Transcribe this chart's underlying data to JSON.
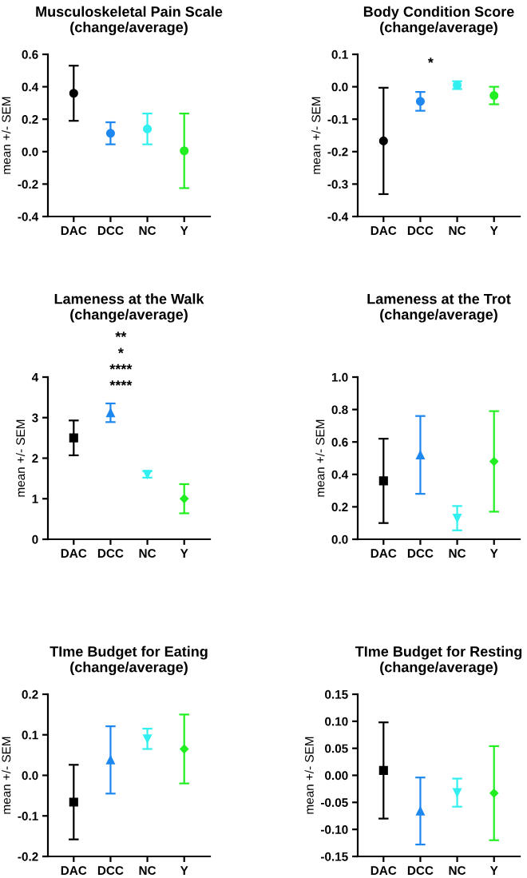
{
  "chart_data": [
    {
      "type": "scatter",
      "title": "Musculoskeletal Pain Scale\n(change/average)",
      "ylabel": "mean +/- SEM",
      "categories": [
        "DAC",
        "DCC",
        "NC",
        "Y"
      ],
      "ylim": [
        -0.4,
        0.6
      ],
      "yticks": [
        -0.4,
        -0.2,
        {
          "value": 0,
          "label": "0.0"
        },
        0.2,
        0.4,
        0.6
      ],
      "series": [
        {
          "color": "#000000",
          "marker": "circle",
          "values": [
            0.36,
            null,
            null,
            null
          ],
          "errors": [
            0.17,
            null,
            null,
            null
          ]
        },
        {
          "color": "#1e88f0",
          "marker": "circle",
          "values": [
            null,
            0.113,
            null,
            null
          ],
          "errors": [
            null,
            0.068,
            null,
            null
          ]
        },
        {
          "color": "#33f0f0",
          "marker": "circle",
          "values": [
            null,
            null,
            0.14,
            null
          ],
          "errors": [
            null,
            null,
            0.095,
            null
          ]
        },
        {
          "color": "#22ee22",
          "marker": "circle",
          "values": [
            null,
            null,
            null,
            0.005
          ],
          "errors": [
            null,
            null,
            null,
            0.23
          ]
        }
      ]
    },
    {
      "type": "scatter",
      "title": "Body Condition Score\n(change/average)",
      "ylabel": "mean +/- SEM",
      "categories": [
        "DAC",
        "DCC",
        "NC",
        "Y"
      ],
      "ylim": [
        -0.4,
        0.1
      ],
      "yticks": [
        -0.4,
        -0.3,
        -0.2,
        -0.1,
        {
          "value": 0,
          "label": "0.0"
        },
        0.1
      ],
      "annotations": [
        "*"
      ],
      "series": [
        {
          "color": "#000000",
          "marker": "circle",
          "values": [
            -0.167,
            null,
            null,
            null
          ],
          "errors": [
            0.164,
            null,
            null,
            null
          ]
        },
        {
          "color": "#1e88f0",
          "marker": "circle",
          "values": [
            null,
            -0.045,
            null,
            null
          ],
          "errors": [
            null,
            0.029,
            null,
            null
          ]
        },
        {
          "color": "#33f0f0",
          "marker": "circle",
          "values": [
            null,
            null,
            0.005,
            null
          ],
          "errors": [
            null,
            null,
            0.012,
            null
          ]
        },
        {
          "color": "#22ee22",
          "marker": "circle",
          "values": [
            null,
            null,
            null,
            -0.027
          ],
          "errors": [
            null,
            null,
            null,
            0.027
          ]
        }
      ]
    },
    {
      "type": "scatter",
      "title": "Lameness at the Walk\n(change/average)",
      "ylabel": "mean +/- SEM",
      "categories": [
        "DAC",
        "DCC",
        "NC",
        "Y"
      ],
      "ylim": [
        0,
        4
      ],
      "yticks": [
        0,
        1,
        2,
        3,
        4
      ],
      "annotations": [
        "**",
        "*",
        "****",
        "****"
      ],
      "series": [
        {
          "color": "#000000",
          "marker": "square",
          "values": [
            2.5,
            null,
            null,
            null
          ],
          "errors": [
            0.43,
            null,
            null,
            null
          ]
        },
        {
          "color": "#1e88f0",
          "marker": "triangle",
          "values": [
            null,
            3.12,
            null,
            null
          ],
          "errors": [
            null,
            0.23,
            null,
            null
          ]
        },
        {
          "color": "#33f0f0",
          "marker": "triangle_down",
          "values": [
            null,
            null,
            1.6,
            null
          ],
          "errors": [
            null,
            null,
            0.08,
            null
          ]
        },
        {
          "color": "#22ee22",
          "marker": "diamond",
          "values": [
            null,
            null,
            null,
            1.0
          ],
          "errors": [
            null,
            null,
            null,
            0.36
          ]
        }
      ]
    },
    {
      "type": "scatter",
      "title": "Lameness at the Trot\n(change/average)",
      "ylabel": "mean +/- SEM",
      "categories": [
        "DAC",
        "DCC",
        "NC",
        "Y"
      ],
      "ylim": [
        0,
        1
      ],
      "yticks": [
        {
          "value": 0,
          "label": "0.0"
        },
        0.2,
        0.4,
        0.6,
        0.8,
        {
          "value": 1,
          "label": "1.0"
        }
      ],
      "series": [
        {
          "color": "#000000",
          "marker": "square",
          "values": [
            0.36,
            null,
            null,
            null
          ],
          "errors": [
            0.26,
            null,
            null,
            null
          ]
        },
        {
          "color": "#1e88f0",
          "marker": "triangle",
          "values": [
            null,
            0.52,
            null,
            null
          ],
          "errors": [
            null,
            0.24,
            null,
            null
          ]
        },
        {
          "color": "#33f0f0",
          "marker": "triangle_down",
          "values": [
            null,
            null,
            0.13,
            null
          ],
          "errors": [
            null,
            null,
            0.075,
            null
          ]
        },
        {
          "color": "#22ee22",
          "marker": "diamond",
          "values": [
            null,
            null,
            null,
            0.48
          ],
          "errors": [
            null,
            null,
            null,
            0.31
          ]
        }
      ]
    },
    {
      "type": "scatter",
      "title": "TIme Budget for Eating\n(change/average)",
      "ylabel": "mean +/- SEM",
      "categories": [
        "DAC",
        "DCC",
        "NC",
        "Y"
      ],
      "ylim": [
        -0.2,
        0.2
      ],
      "yticks": [
        -0.2,
        -0.1,
        {
          "value": 0,
          "label": "0.0"
        },
        0.1,
        0.2
      ],
      "series": [
        {
          "color": "#000000",
          "marker": "square",
          "values": [
            -0.066,
            null,
            null,
            null
          ],
          "errors": [
            0.092,
            null,
            null,
            null
          ]
        },
        {
          "color": "#1e88f0",
          "marker": "triangle",
          "values": [
            null,
            0.038,
            null,
            null
          ],
          "errors": [
            null,
            0.083,
            null,
            null
          ]
        },
        {
          "color": "#33f0f0",
          "marker": "triangle_down",
          "values": [
            null,
            null,
            0.09,
            null
          ],
          "errors": [
            null,
            null,
            0.025,
            null
          ]
        },
        {
          "color": "#22ee22",
          "marker": "diamond",
          "values": [
            null,
            null,
            null,
            0.065
          ],
          "errors": [
            null,
            null,
            null,
            0.085
          ]
        }
      ]
    },
    {
      "type": "scatter",
      "title": "TIme Budget for Resting\n(change/average)",
      "ylabel": "mean +/- SEM",
      "categories": [
        "DAC",
        "DCC",
        "NC",
        "Y"
      ],
      "ylim": [
        -0.15,
        0.15
      ],
      "yticks": [
        {
          "value": -0.15,
          "label": "-0.15"
        },
        {
          "value": -0.1,
          "label": "-0.10"
        },
        {
          "value": -0.05,
          "label": "-0.05"
        },
        {
          "value": 0,
          "label": "0.00"
        },
        {
          "value": 0.05,
          "label": "0.05"
        },
        {
          "value": 0.1,
          "label": "0.10"
        },
        {
          "value": 0.15,
          "label": "0.15"
        }
      ],
      "series": [
        {
          "color": "#000000",
          "marker": "square",
          "values": [
            0.009,
            null,
            null,
            null
          ],
          "errors": [
            0.089,
            null,
            null,
            null
          ]
        },
        {
          "color": "#1e88f0",
          "marker": "triangle",
          "values": [
            null,
            -0.066,
            null,
            null
          ],
          "errors": [
            null,
            0.062,
            null,
            null
          ]
        },
        {
          "color": "#33f0f0",
          "marker": "triangle_down",
          "values": [
            null,
            null,
            -0.032,
            null
          ],
          "errors": [
            null,
            null,
            0.026,
            null
          ]
        },
        {
          "color": "#22ee22",
          "marker": "diamond",
          "values": [
            null,
            null,
            null,
            -0.033
          ],
          "errors": [
            null,
            null,
            null,
            0.087
          ]
        }
      ]
    }
  ]
}
